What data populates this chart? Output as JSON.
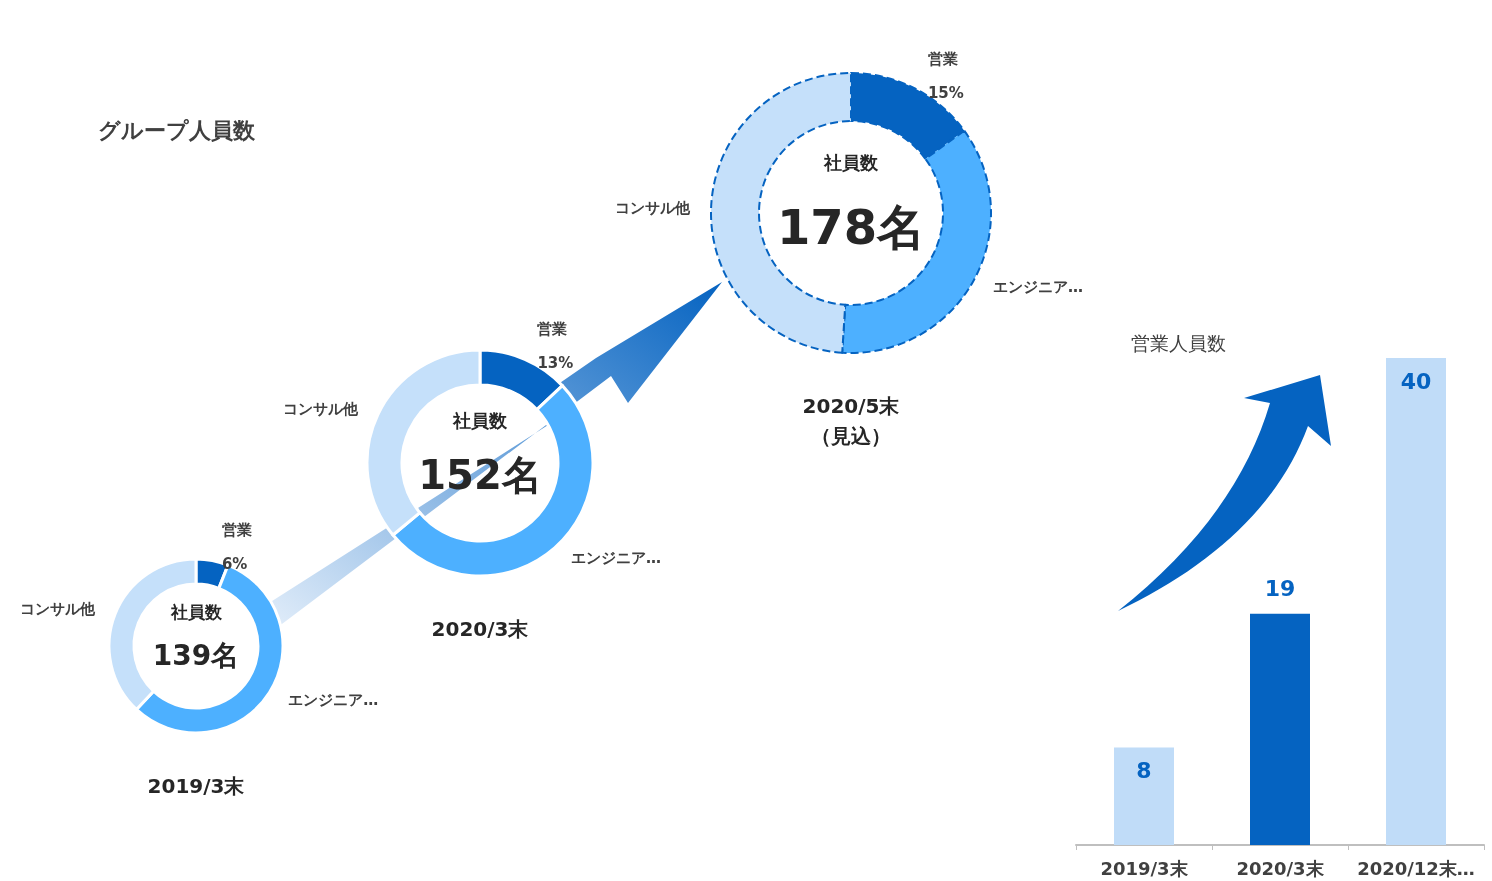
{
  "chart_data": [
    {
      "type": "donut",
      "title": "2019/3末",
      "subtitle": "グループ人員数",
      "annotations": [
        "社員数",
        "139名"
      ],
      "categories": [
        "営業",
        "エンジニア…",
        "コンサル他"
      ],
      "values": [
        6,
        56,
        38
      ],
      "value_labels": [
        "6%",
        null,
        null
      ],
      "colors": [
        "#0563c1",
        "#4db0ff",
        "#c5e0fa"
      ]
    },
    {
      "type": "donut",
      "title": "2020/3末",
      "annotations": [
        "社員数",
        "152名"
      ],
      "categories": [
        "営業",
        "エンジニア…",
        "コンサル他"
      ],
      "values": [
        13,
        51,
        36
      ],
      "value_labels": [
        "13%",
        null,
        null
      ],
      "colors": [
        "#0563c1",
        "#4db0ff",
        "#c5e0fa"
      ]
    },
    {
      "type": "donut",
      "title": "2020/5末（見込）",
      "annotations": [
        "社員数",
        "178名"
      ],
      "categories": [
        "営業",
        "エンジニア…",
        "コンサル他"
      ],
      "values": [
        15,
        36,
        49
      ],
      "value_labels": [
        "15%",
        null,
        null
      ],
      "colors": [
        "#0563c1",
        "#4db0ff",
        "#c5e0fa"
      ],
      "line_style": "dashed"
    },
    {
      "type": "bar",
      "title": "営業人員数",
      "categories": [
        "2019/3末",
        "2020/3末",
        "2020/12末…"
      ],
      "values": [
        8,
        19,
        40
      ],
      "data_labels": true,
      "colors": [
        "#c0dcf8",
        "#0563c1",
        "#c0dcf8"
      ]
    }
  ]
}
